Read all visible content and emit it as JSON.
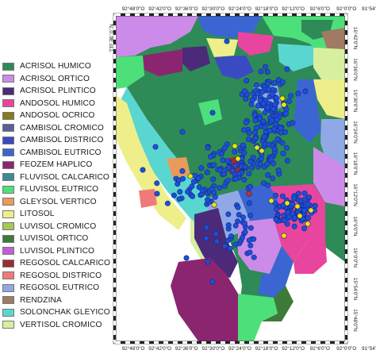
{
  "legend": {
    "items": [
      {
        "label": "ACRISOL HUMICO",
        "color": "#2e8b57"
      },
      {
        "label": "ACRISOL ORTICO",
        "color": "#cc8be8"
      },
      {
        "label": "ACRISOL PLINTICO",
        "color": "#4b2a7a"
      },
      {
        "label": "ANDOSOL HUMICO",
        "color": "#e8459f"
      },
      {
        "label": "ANDOSOL OCRICO",
        "color": "#8a7a1e"
      },
      {
        "label": "CAMBISOL CROMICO",
        "color": "#5b5e99"
      },
      {
        "label": "CAMBISOL DISTRICO",
        "color": "#3a4ac2"
      },
      {
        "label": "CAMBISOL EUTRICO",
        "color": "#3b66d1"
      },
      {
        "label": "FEOZEM HAPLICO",
        "color": "#8b2570"
      },
      {
        "label": "FLUVISOL CALCARICO",
        "color": "#3d8b8e"
      },
      {
        "label": "FLUVISOL EUTRICO",
        "color": "#4de07a"
      },
      {
        "label": "GLEYSOL VERTICO",
        "color": "#e89a5a"
      },
      {
        "label": "LITOSOL",
        "color": "#eeee8a"
      },
      {
        "label": "LUVISOL CROMICO",
        "color": "#a6c953"
      },
      {
        "label": "LUVISOL ORTICO",
        "color": "#3e7a3a"
      },
      {
        "label": "LUVISOL PLINTICO",
        "color": "#c45cd6"
      },
      {
        "label": "REGOSOL CALCARICO",
        "color": "#992d35"
      },
      {
        "label": "REGOSOL DISTRICO",
        "color": "#f07a7a"
      },
      {
        "label": "REGOSOL EUTRICO",
        "color": "#91a8e6"
      },
      {
        "label": "RENDZINA",
        "color": "#a07a62"
      },
      {
        "label": "SOLONCHAK GLEYICO",
        "color": "#5ad6d0"
      },
      {
        "label": "VERTISOL CROMICO",
        "color": "#d6f0a0"
      }
    ]
  },
  "axes": {
    "top": [
      "92°48'0\"O",
      "92°42'0\"O",
      "92°36'0\"O",
      "92°30'0\"O",
      "92°24'0\"O",
      "92°18'0\"O",
      "92°12'0\"O",
      "92°6'0\"O",
      "92°0'0\"O",
      "91°54'0\"O"
    ],
    "bottom": [
      "92°48'0\"O",
      "92°42'0\"O",
      "92°36'0\"O",
      "92°30'0\"O",
      "92°24'0\"O",
      "92°18'0\"O",
      "92°12'0\"O",
      "92°6'0\"O",
      "92°0'0\"O",
      "91°54'0\"O"
    ],
    "left": [
      "N,,0,.9E.oLL"
    ],
    "right": [
      "16°42'0\"N",
      "16°36'0\"N",
      "16°30'0\"N",
      "16°24'0\"N",
      "16°18'0\"N",
      "16°12'0\"N",
      "16°6'0\"N",
      "16°0'0\"N",
      "15°54'0\"N",
      "15°48'0\"N"
    ]
  },
  "markers": {
    "sample_color": "#1f4fd8",
    "highlight_color": "#f2e600",
    "special_color": "#c0302a"
  }
}
